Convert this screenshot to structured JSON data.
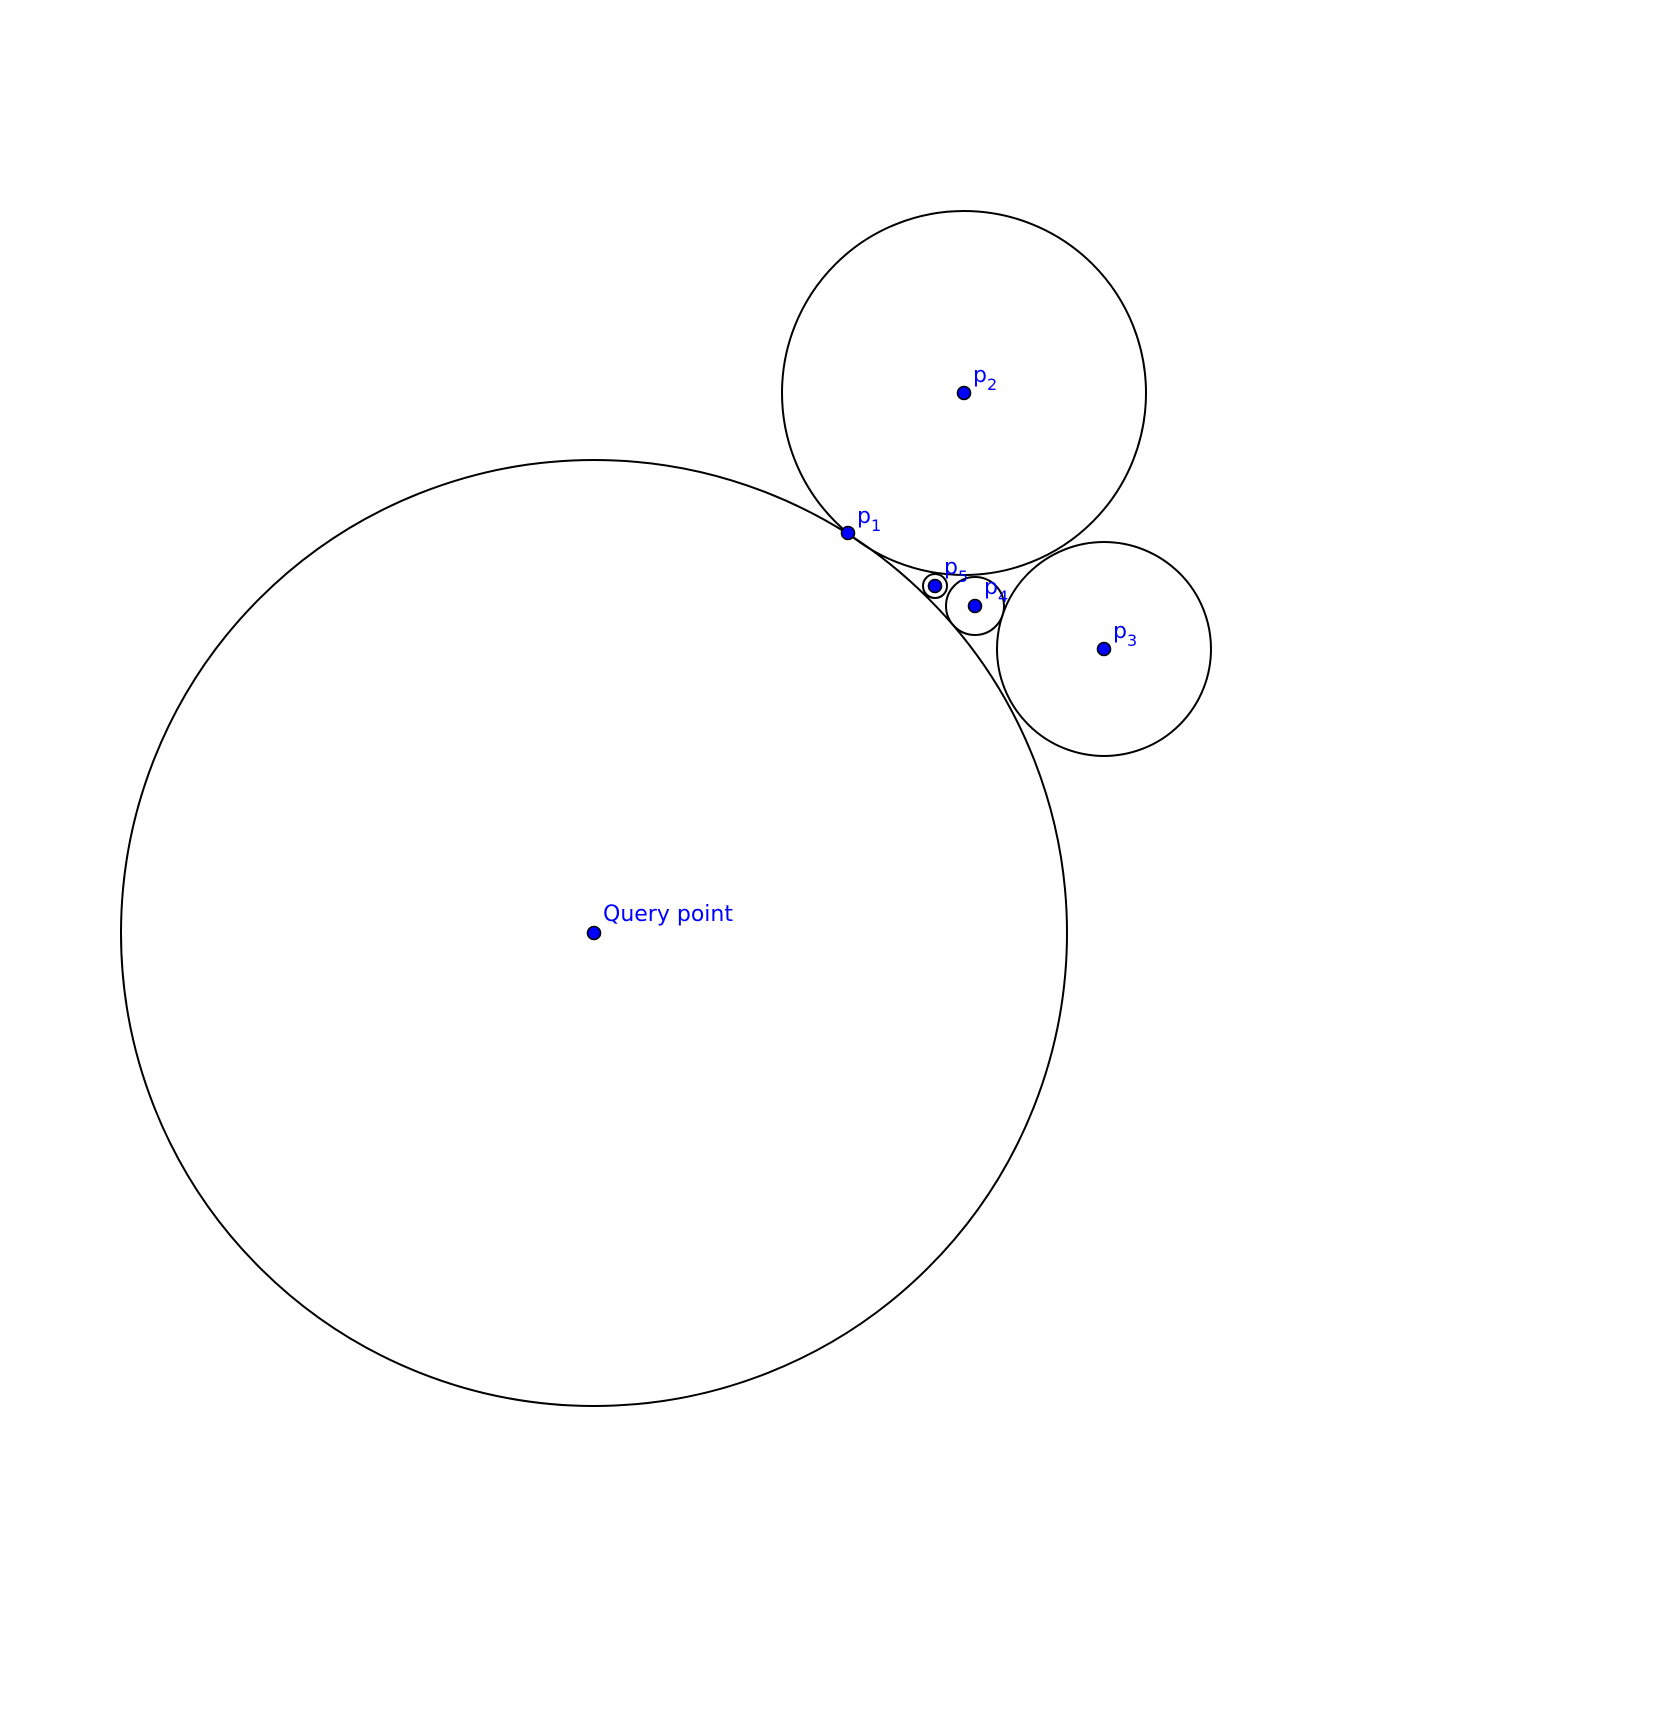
{
  "colors": {
    "point_fill": "#0000ff",
    "label_text": "#0000ff",
    "circle_stroke": "#000000",
    "background": "#ffffff"
  },
  "points": {
    "query": {
      "label": "Query point"
    },
    "p1": {
      "letter": "p",
      "index": "1"
    },
    "p2": {
      "letter": "p",
      "index": "2"
    },
    "p3": {
      "letter": "p",
      "index": "3"
    },
    "p4": {
      "letter": "p",
      "index": "4"
    },
    "p5": {
      "letter": "p",
      "index": "5"
    }
  }
}
